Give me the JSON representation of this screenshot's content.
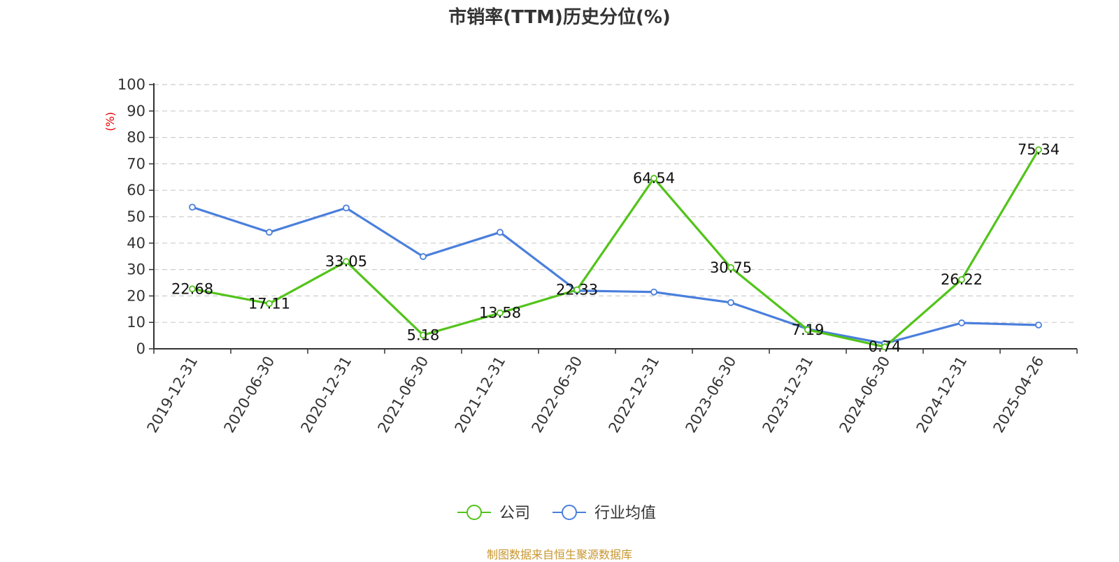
{
  "title": "市销率(TTM)历史分位(%)",
  "source": "制图数据来自恒生聚源数据库",
  "chart_data": {
    "type": "line",
    "ylabel": "(%)",
    "ylim": [
      0,
      100
    ],
    "yticks": [
      0,
      10,
      20,
      30,
      40,
      50,
      60,
      70,
      80,
      90,
      100
    ],
    "grid": true,
    "legend_position": "bottom-center",
    "categories": [
      "2019-12-31",
      "2020-06-30",
      "2020-12-31",
      "2021-06-30",
      "2021-12-31",
      "2022-06-30",
      "2022-12-31",
      "2023-06-30",
      "2023-12-31",
      "2024-06-30",
      "2024-12-31",
      "2025-04-26"
    ],
    "series": [
      {
        "name": "公司",
        "color": "#52c41a",
        "values": [
          22.68,
          17.11,
          33.05,
          5.18,
          13.58,
          22.33,
          64.54,
          30.75,
          7.19,
          0.74,
          26.22,
          75.34
        ],
        "labels": [
          "22.68",
          "17.11",
          "33.05",
          "5.18",
          "13.58",
          "22.33",
          "64.54",
          "30.75",
          "7.19",
          "0.74",
          "26.22",
          "75.34"
        ],
        "show_labels": true
      },
      {
        "name": "行业均值",
        "color": "#4a7fdc",
        "values": [
          53.6,
          44.1,
          53.3,
          34.9,
          44.1,
          22.0,
          21.5,
          17.5,
          7.5,
          2.0,
          9.8,
          9.0
        ],
        "show_labels": false
      }
    ]
  }
}
